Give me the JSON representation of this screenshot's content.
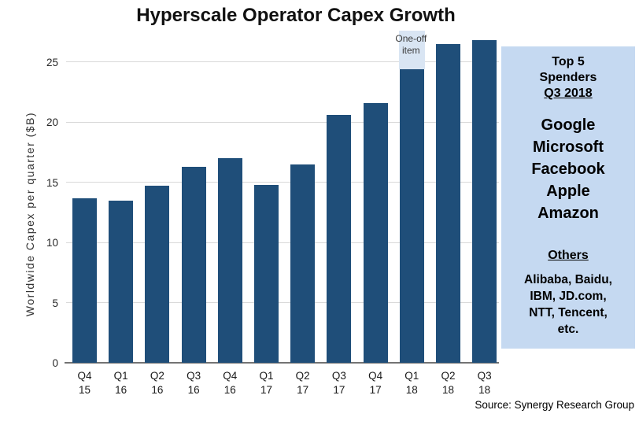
{
  "title": "Hyperscale Operator Capex Growth",
  "chart_data": {
    "type": "bar",
    "title": "Hyperscale Operator Capex Growth",
    "ylabel": "Worldwide Capex per quarter ($B)",
    "xlabel": "",
    "categories": [
      "Q4 15",
      "Q1 16",
      "Q2 16",
      "Q3 16",
      "Q4 16",
      "Q1 17",
      "Q2 17",
      "Q3 17",
      "Q4 17",
      "Q1 18",
      "Q2 18",
      "Q3 18"
    ],
    "values": [
      13.7,
      13.5,
      14.7,
      16.3,
      17.0,
      14.8,
      16.5,
      20.6,
      21.6,
      24.4,
      26.5,
      26.8
    ],
    "yticks": [
      0,
      5,
      10,
      15,
      20,
      25
    ],
    "ylim": [
      0,
      27.6
    ],
    "grid": true,
    "legend": "none",
    "bar_color": "#1F4E79",
    "gridline_color": "#D9D9D9",
    "annotation": {
      "category": "Q1 18",
      "index": 9,
      "label": "One-off item",
      "label_lines": [
        "One-off",
        "item"
      ],
      "extra_value": 3.2,
      "total_with_oneoff": 27.6,
      "segment_color": "#D9E5F3"
    }
  },
  "side_panel": {
    "bg_color": "#C5D9F1",
    "heading_lines": [
      "Top 5",
      "Spenders"
    ],
    "heading_underlined": "Q3 2018",
    "top5": [
      "Google",
      "Microsoft",
      "Facebook",
      "Apple",
      "Amazon"
    ],
    "others_heading": "Others",
    "others_lines": [
      "Alibaba, Baidu,",
      "IBM, JD.com,",
      "NTT, Tencent,",
      "etc."
    ]
  },
  "source": "Source: Synergy Research Group"
}
